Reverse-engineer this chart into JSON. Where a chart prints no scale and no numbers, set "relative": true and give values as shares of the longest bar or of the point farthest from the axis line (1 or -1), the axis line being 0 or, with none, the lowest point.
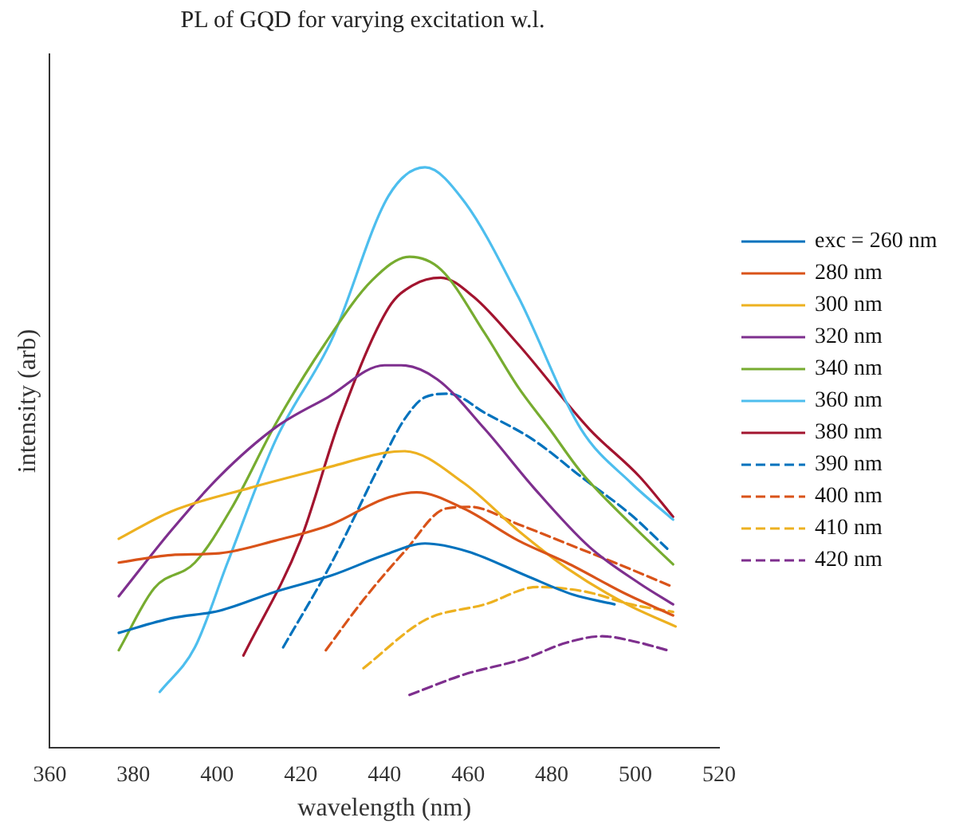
{
  "chart_data": {
    "type": "line",
    "title": "PL of GQD for varying excitation w.l.",
    "xlabel": "wavelength (nm)",
    "ylabel": "intensity (arb)",
    "relative": true,
    "xlim": [
      360,
      520
    ],
    "xticks": [
      360,
      380,
      400,
      420,
      440,
      460,
      480,
      500,
      520
    ],
    "tick_labels": "x",
    "grid": false,
    "legend": "right",
    "marker": "none",
    "series": [
      {
        "name": "exc = 260 nm",
        "color": "#0072bd",
        "line_style": "solid",
        "x": [
          376.5,
          389,
          400.5,
          414,
          427.4,
          440,
          449.7,
          460,
          473.7,
          485,
          495
        ],
        "values": [
          0.198,
          0.223,
          0.236,
          0.269,
          0.297,
          0.332,
          0.352,
          0.338,
          0.297,
          0.264,
          0.247
        ]
      },
      {
        "name": "280 nm",
        "color": "#d95319",
        "line_style": "solid",
        "x": [
          376.5,
          389,
          400.5,
          414,
          427.4,
          440,
          447.7,
          459,
          472,
          483.5,
          498,
          509
        ],
        "values": [
          0.319,
          0.332,
          0.335,
          0.357,
          0.385,
          0.429,
          0.44,
          0.412,
          0.357,
          0.319,
          0.264,
          0.228
        ]
      },
      {
        "name": "300 nm",
        "color": "#edb120",
        "line_style": "solid",
        "x": [
          376.5,
          389,
          408,
          427,
          440,
          444.8,
          459,
          472,
          483.5,
          498,
          509.6
        ],
        "values": [
          0.36,
          0.407,
          0.448,
          0.484,
          0.508,
          0.511,
          0.456,
          0.374,
          0.31,
          0.247,
          0.209
        ]
      },
      {
        "name": "320 nm",
        "color": "#7e2f8e",
        "line_style": "solid",
        "x": [
          376.5,
          389,
          400.5,
          414,
          426.5,
          440,
          444,
          452.6,
          464,
          475.7,
          489,
          501,
          509
        ],
        "values": [
          0.261,
          0.374,
          0.467,
          0.552,
          0.604,
          0.659,
          0.659,
          0.635,
          0.549,
          0.448,
          0.346,
          0.283,
          0.247
        ]
      },
      {
        "name": "340 nm",
        "color": "#77ac30",
        "line_style": "solid",
        "x": [
          376.5,
          385,
          394.7,
          403.4,
          414,
          425.7,
          437,
          446,
          453.5,
          464,
          472,
          479.5,
          487,
          499,
          509
        ],
        "values": [
          0.168,
          0.275,
          0.319,
          0.412,
          0.558,
          0.695,
          0.805,
          0.846,
          0.824,
          0.714,
          0.621,
          0.549,
          0.475,
          0.385,
          0.316
        ]
      },
      {
        "name": "360 nm",
        "color": "#4dbeee",
        "line_style": "solid",
        "x": [
          386.3,
          394.7,
          402.5,
          414,
          427.4,
          441,
          449.7,
          459,
          472,
          487,
          499,
          509
        ],
        "values": [
          0.096,
          0.173,
          0.319,
          0.53,
          0.703,
          0.951,
          1,
          0.942,
          0.777,
          0.549,
          0.456,
          0.393
        ]
      },
      {
        "name": "380 nm",
        "color": "#a2142f",
        "line_style": "solid",
        "x": [
          406.3,
          419.9,
          429.4,
          441,
          446.8,
          453.5,
          461.3,
          472,
          489,
          501,
          509
        ],
        "values": [
          0.159,
          0.357,
          0.566,
          0.758,
          0.797,
          0.81,
          0.777,
          0.695,
          0.549,
          0.467,
          0.398
        ]
      },
      {
        "name": "390 nm",
        "color": "#0072bd",
        "line_style": "dashed",
        "x": [
          415.8,
          427.4,
          440,
          444.8,
          449.7,
          455.5,
          464,
          475.7,
          487,
          499,
          507.6
        ],
        "values": [
          0.173,
          0.319,
          0.503,
          0.566,
          0.604,
          0.61,
          0.577,
          0.53,
          0.467,
          0.401,
          0.343
        ]
      },
      {
        "name": "400 nm",
        "color": "#d95319",
        "line_style": "dashed",
        "x": [
          426,
          435,
          444.8,
          454.6,
          460.4,
          472,
          483.5,
          495,
          509
        ],
        "values": [
          0.168,
          0.255,
          0.338,
          0.412,
          0.415,
          0.385,
          0.352,
          0.319,
          0.277
        ]
      },
      {
        "name": "410 nm",
        "color": "#edb120",
        "line_style": "dashed",
        "x": [
          435,
          449.7,
          464,
          476.6,
          488,
          499,
          509
        ],
        "values": [
          0.137,
          0.22,
          0.247,
          0.277,
          0.269,
          0.247,
          0.234
        ]
      },
      {
        "name": "420 nm",
        "color": "#7e2f8e",
        "line_style": "dashed",
        "x": [
          446,
          459,
          473.7,
          483.5,
          492,
          501,
          507.6
        ],
        "values": [
          0.091,
          0.126,
          0.154,
          0.181,
          0.192,
          0.181,
          0.168
        ]
      }
    ]
  }
}
